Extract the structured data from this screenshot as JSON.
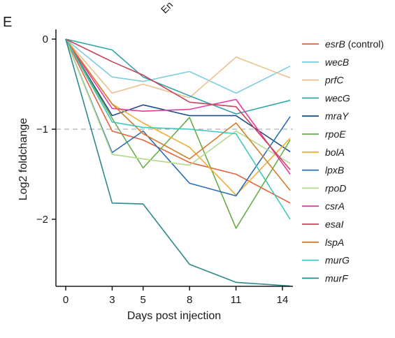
{
  "panel_letter": "E",
  "top_fragment": "En",
  "chart_data": {
    "type": "line",
    "xlabel": "Days post injection",
    "ylabel": "Log2 foldchange",
    "xlim": [
      -1,
      14.2
    ],
    "ylim": [
      -2.75,
      0.12
    ],
    "x_ticks": [
      0,
      3,
      5,
      8,
      11,
      14
    ],
    "y_ticks": [
      0,
      -1,
      -2
    ],
    "reference_line": {
      "y": -1,
      "style": "dashed",
      "color": "#9e9e9e"
    },
    "legend_position": "right",
    "x": [
      0,
      3,
      5,
      8,
      11,
      14.5
    ],
    "series": [
      {
        "name": "esrB",
        "suffix": " (control)",
        "color": "#e8603c",
        "values": [
          0,
          -1.02,
          -1.12,
          -1.37,
          -1.5,
          -1.82
        ]
      },
      {
        "name": "wecB",
        "suffix": "",
        "color": "#7ccde0",
        "values": [
          0,
          -0.42,
          -0.47,
          -0.36,
          -0.6,
          -0.3
        ]
      },
      {
        "name": "prfC",
        "suffix": "",
        "color": "#ecc08e",
        "values": [
          0,
          -0.6,
          -0.5,
          -0.65,
          -0.2,
          -0.43
        ]
      },
      {
        "name": "wecG",
        "suffix": "",
        "color": "#2fa5ab",
        "values": [
          0,
          -0.12,
          -0.42,
          -0.63,
          -0.83,
          -0.68
        ]
      },
      {
        "name": "mraY",
        "suffix": "",
        "color": "#1b4f8c",
        "values": [
          0,
          -0.85,
          -0.73,
          -0.85,
          -0.85,
          -1.25
        ]
      },
      {
        "name": "rpoE",
        "suffix": "",
        "color": "#67ad46",
        "values": [
          0,
          -0.88,
          -1.43,
          -0.87,
          -2.1,
          -1.12
        ]
      },
      {
        "name": "bolA",
        "suffix": "",
        "color": "#f4ac35",
        "values": [
          0,
          -0.72,
          -0.93,
          -1.2,
          -1.73,
          -1.1
        ]
      },
      {
        "name": "lpxB",
        "suffix": "",
        "color": "#2a6eb5",
        "values": [
          0,
          -1.26,
          -1.02,
          -1.6,
          -1.74,
          -0.86
        ]
      },
      {
        "name": "rpoD",
        "suffix": "",
        "color": "#b3d98a",
        "values": [
          0,
          -1.28,
          -1.33,
          -1.4,
          -1.02,
          -1.38
        ]
      },
      {
        "name": "csrA",
        "suffix": "",
        "color": "#e23c9e",
        "values": [
          0,
          -0.77,
          -0.8,
          -0.78,
          -0.67,
          -1.5
        ]
      },
      {
        "name": "esaI",
        "suffix": "",
        "color": "#c7445a",
        "values": [
          0,
          -0.25,
          -0.4,
          -0.7,
          -0.75,
          -1.45
        ]
      },
      {
        "name": "lspA",
        "suffix": "",
        "color": "#d77c2c",
        "values": [
          0,
          -0.72,
          -1.05,
          -1.33,
          -0.93,
          -1.68
        ]
      },
      {
        "name": "murG",
        "suffix": "",
        "color": "#3ec6c0",
        "values": [
          0,
          -0.92,
          -0.98,
          -1.0,
          -1.05,
          -2.0
        ]
      },
      {
        "name": "murF",
        "suffix": "",
        "color": "#2d8a8a",
        "values": [
          0,
          -1.82,
          -1.83,
          -2.5,
          -2.7,
          -2.74
        ]
      }
    ]
  }
}
